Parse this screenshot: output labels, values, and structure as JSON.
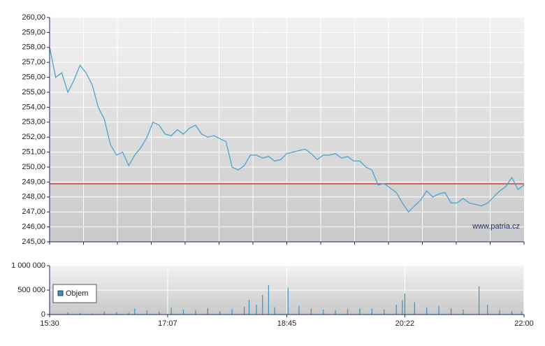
{
  "chart_data": [
    {
      "type": "line",
      "color": "#4aa3cf",
      "x": [
        930,
        935,
        940,
        945,
        950,
        955,
        960,
        965,
        970,
        975,
        980,
        985,
        990,
        995,
        1000,
        1005,
        1010,
        1015,
        1020,
        1025,
        1030,
        1035,
        1040,
        1045,
        1050,
        1055,
        1060,
        1065,
        1070,
        1075,
        1080,
        1085,
        1090,
        1095,
        1100,
        1105,
        1110,
        1115,
        1120,
        1125,
        1130,
        1135,
        1140,
        1145,
        1150,
        1155,
        1160,
        1165,
        1170,
        1175,
        1180,
        1185,
        1190,
        1195,
        1200,
        1205,
        1210,
        1215,
        1220,
        1225,
        1230,
        1235,
        1240,
        1245,
        1250,
        1255,
        1260,
        1265,
        1270,
        1275,
        1280,
        1285,
        1290,
        1295,
        1300,
        1305,
        1310,
        1315,
        1320
      ],
      "values": [
        258.0,
        256.0,
        256.3,
        255.0,
        255.8,
        256.8,
        256.3,
        255.5,
        254.0,
        253.2,
        251.5,
        250.8,
        251.0,
        250.1,
        250.8,
        251.3,
        252.0,
        253.0,
        252.8,
        252.2,
        252.1,
        252.5,
        252.2,
        252.6,
        252.8,
        252.2,
        252.0,
        252.1,
        251.9,
        251.7,
        250.0,
        249.8,
        250.1,
        250.8,
        250.8,
        250.6,
        250.7,
        250.4,
        250.5,
        250.9,
        251.0,
        251.1,
        251.2,
        250.9,
        250.5,
        250.8,
        250.8,
        250.9,
        250.6,
        250.7,
        250.4,
        250.4,
        250.0,
        249.8,
        248.8,
        248.9,
        248.6,
        248.3,
        247.6,
        247.0,
        247.4,
        247.8,
        248.4,
        248.0,
        248.2,
        248.3,
        247.6,
        247.6,
        247.9,
        247.6,
        247.5,
        247.4,
        247.6,
        248.0,
        248.4,
        248.7,
        249.3,
        248.5,
        248.8
      ],
      "xlim": [
        930,
        1320
      ],
      "ylim": [
        245,
        260
      ],
      "yticks": [
        {
          "value": 245,
          "label": "245,00"
        },
        {
          "value": 246,
          "label": "246,00"
        },
        {
          "value": 247,
          "label": "247,00"
        },
        {
          "value": 248,
          "label": "248,00"
        },
        {
          "value": 249,
          "label": "249,00"
        },
        {
          "value": 250,
          "label": "250,00"
        },
        {
          "value": 251,
          "label": "251,00"
        },
        {
          "value": 252,
          "label": "252,00"
        },
        {
          "value": 253,
          "label": "253,00"
        },
        {
          "value": 254,
          "label": "254,00"
        },
        {
          "value": 255,
          "label": "255,00"
        },
        {
          "value": 256,
          "label": "256,00"
        },
        {
          "value": 257,
          "label": "257,00"
        },
        {
          "value": 258,
          "label": "258,00"
        },
        {
          "value": 259,
          "label": "259,00"
        },
        {
          "value": 260,
          "label": "260,00"
        }
      ],
      "reference_line": 248.88,
      "reference_color": "#cc2222",
      "watermark": "www.patria.cz",
      "grid": true
    },
    {
      "type": "bar",
      "x": [
        930,
        945,
        955,
        965,
        975,
        985,
        995,
        1000,
        1010,
        1020,
        1030,
        1040,
        1050,
        1060,
        1070,
        1080,
        1090,
        1094,
        1100,
        1105,
        1110,
        1115,
        1126,
        1135,
        1145,
        1155,
        1165,
        1175,
        1185,
        1195,
        1205,
        1215,
        1220,
        1222,
        1230,
        1240,
        1250,
        1260,
        1270,
        1283,
        1290,
        1300,
        1310,
        1318
      ],
      "series": [
        {
          "name": "Objem",
          "color": "#3a8fc4",
          "values": [
            30000,
            40000,
            30000,
            20000,
            60000,
            50000,
            40000,
            120000,
            80000,
            60000,
            150000,
            100000,
            90000,
            130000,
            70000,
            110000,
            160000,
            300000,
            200000,
            400000,
            600000,
            150000,
            550000,
            180000,
            120000,
            100000,
            90000,
            110000,
            130000,
            120000,
            100000,
            200000,
            300000,
            430000,
            250000,
            150000,
            180000,
            130000,
            100000,
            580000,
            200000,
            90000,
            70000,
            60000
          ]
        }
      ],
      "xlim": [
        930,
        1320
      ],
      "xticks": [
        {
          "value": 930,
          "label": "15:30"
        },
        {
          "value": 1027,
          "label": "17:07"
        },
        {
          "value": 1125,
          "label": "18:45"
        },
        {
          "value": 1222,
          "label": "20:22"
        },
        {
          "value": 1320,
          "label": "22:00"
        }
      ],
      "ylim": [
        0,
        1000000
      ],
      "yticks": [
        0,
        {
          "value": 500000,
          "label": "500 000"
        },
        {
          "value": 1000000,
          "label": "1 000 000"
        }
      ],
      "grid": true
    }
  ]
}
